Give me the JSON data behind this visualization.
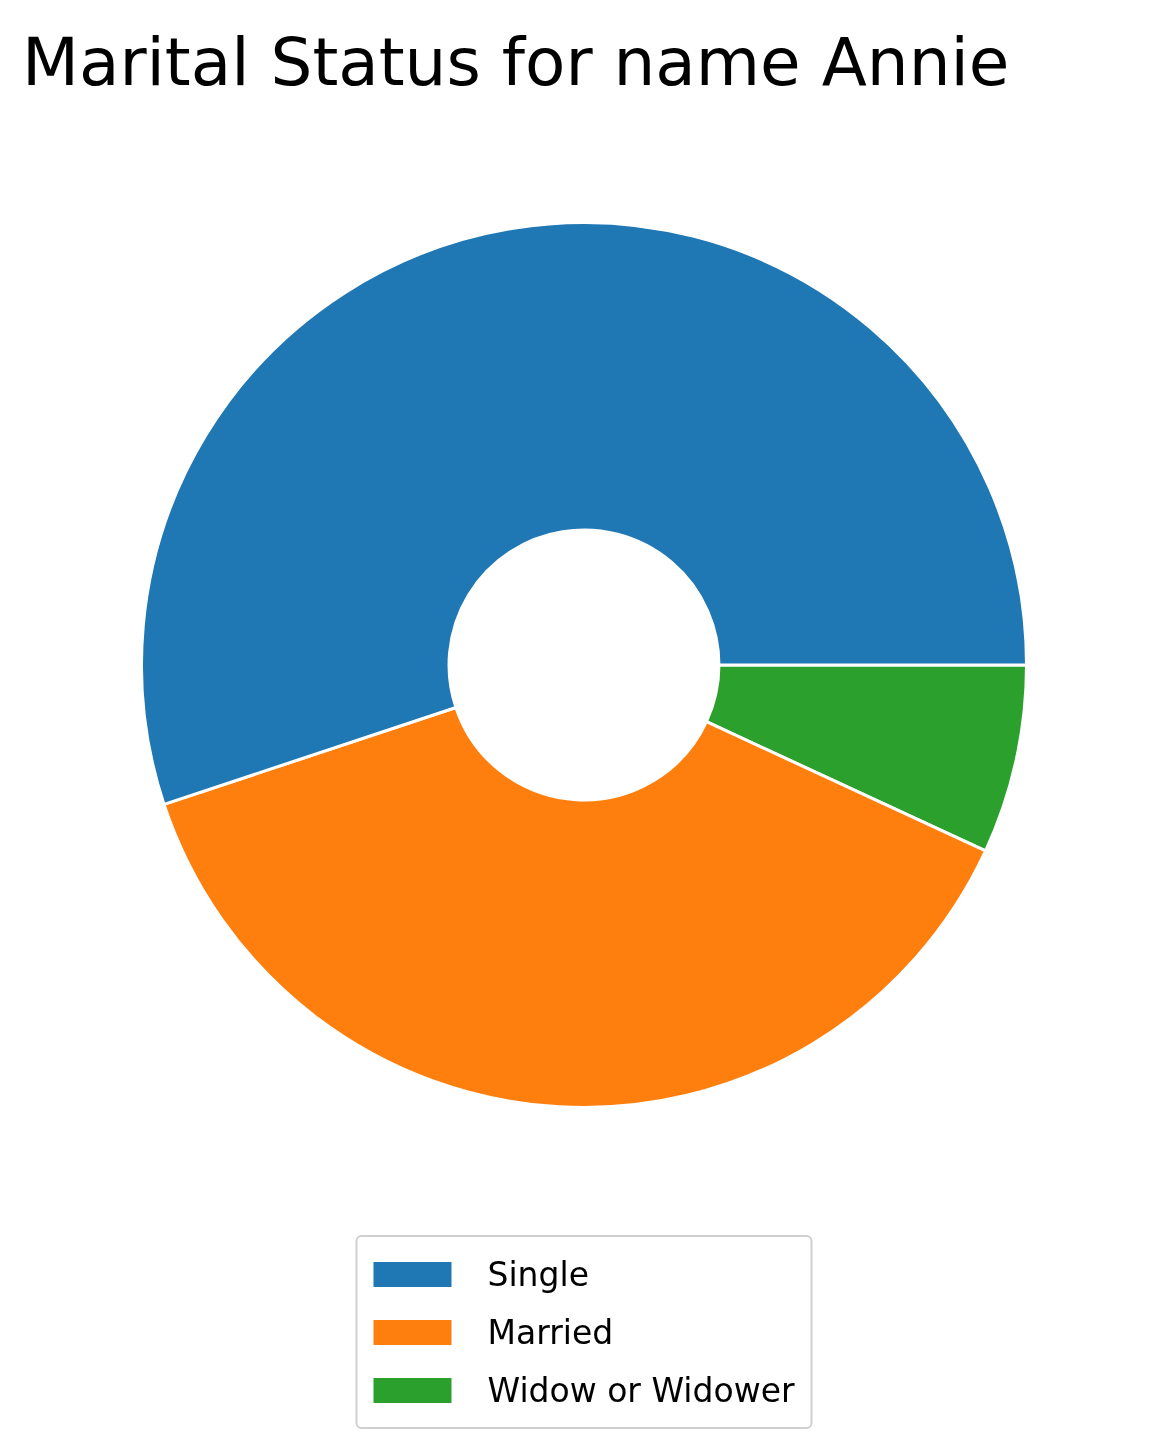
{
  "chart_data": {
    "type": "donut",
    "title": "Marital Status for name Annie",
    "categories": [
      "Single",
      "Married",
      "Widow or Widower"
    ],
    "values": [
      55.1,
      38.0,
      6.9
    ],
    "colors": [
      "#1f77b4",
      "#ff7f0e",
      "#2ca02c"
    ],
    "legend": "bottom"
  }
}
